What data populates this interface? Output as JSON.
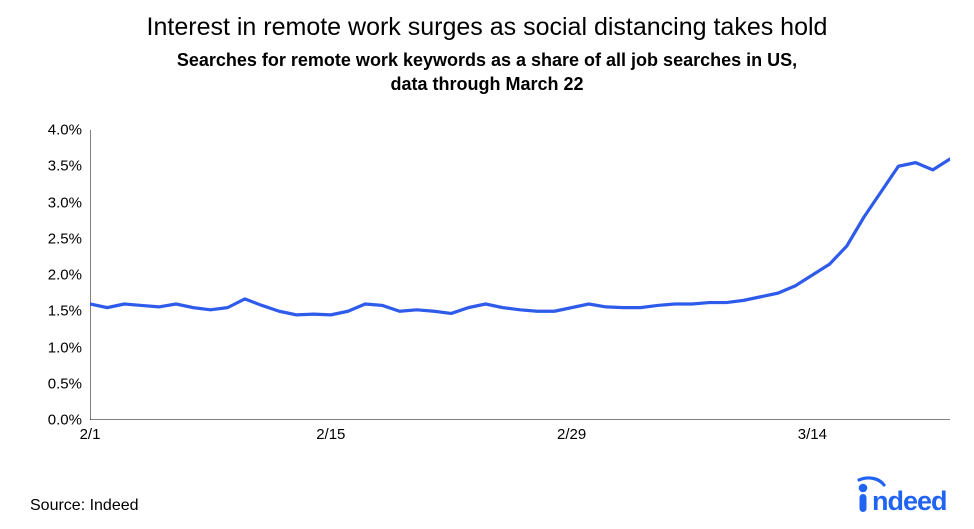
{
  "chart": {
    "type": "line",
    "title": "Interest in remote work surges as social distancing takes hold",
    "subtitle_line1": "Searches for remote work keywords as a share of all job searches in US,",
    "subtitle_line2": "data through March 22",
    "title_fontsize": 25,
    "subtitle_fontsize": 18,
    "background_color": "#ffffff",
    "line_color": "#2f5bea",
    "line_width": 3.2,
    "axis_color": "#000000",
    "axis_width": 1,
    "text_color": "#000000",
    "y": {
      "min": 0.0,
      "max": 4.0,
      "tick_step": 0.5,
      "tick_labels": [
        "0.0%",
        "0.5%",
        "1.0%",
        "1.5%",
        "2.0%",
        "2.5%",
        "3.0%",
        "3.5%",
        "4.0%"
      ],
      "label_fontsize": 15
    },
    "x": {
      "min": 0,
      "max": 50,
      "tick_positions": [
        0,
        14,
        28,
        42
      ],
      "tick_labels": [
        "2/1",
        "2/15",
        "2/29",
        "3/14"
      ],
      "label_fontsize": 15
    },
    "series": {
      "name": "remote_search_share",
      "x": [
        0,
        1,
        2,
        3,
        4,
        5,
        6,
        7,
        8,
        9,
        10,
        11,
        12,
        13,
        14,
        15,
        16,
        17,
        18,
        19,
        20,
        21,
        22,
        23,
        24,
        25,
        26,
        27,
        28,
        29,
        30,
        31,
        32,
        33,
        34,
        35,
        36,
        37,
        38,
        39,
        40,
        41,
        42,
        43,
        44,
        45,
        46,
        47,
        48,
        49,
        50
      ],
      "y": [
        1.6,
        1.55,
        1.6,
        1.58,
        1.56,
        1.6,
        1.55,
        1.52,
        1.55,
        1.67,
        1.58,
        1.5,
        1.45,
        1.46,
        1.45,
        1.5,
        1.6,
        1.58,
        1.5,
        1.52,
        1.5,
        1.47,
        1.55,
        1.6,
        1.55,
        1.52,
        1.5,
        1.5,
        1.55,
        1.6,
        1.56,
        1.55,
        1.55,
        1.58,
        1.6,
        1.6,
        1.62,
        1.62,
        1.65,
        1.7,
        1.75,
        1.85,
        2.0,
        2.15,
        2.4,
        2.8,
        3.15,
        3.5,
        3.55,
        3.45,
        3.6
      ]
    }
  },
  "source_label": "Source: Indeed",
  "logo": {
    "text": "indeed",
    "color": "#2164f3"
  }
}
